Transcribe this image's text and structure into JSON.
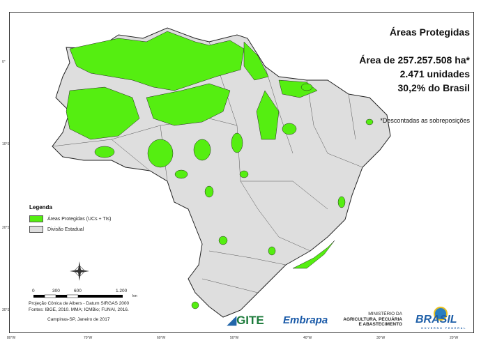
{
  "header": {
    "title": "Áreas Protegidas",
    "area": "Área de 257.257.508 ha*",
    "units": "2.471 unidades",
    "percent": "30,2% do Brasil",
    "note": "*Descontadas as sobreposições"
  },
  "legend": {
    "title": "Legenda",
    "items": [
      {
        "label": "Áreas Protegidas (UCs + TIs)",
        "color": "#55ee11"
      },
      {
        "label": "Divisão Estadual",
        "color": "#dedede"
      }
    ]
  },
  "scale_bar": {
    "labels": [
      "0",
      "300",
      "600",
      "1.200"
    ],
    "unit": "km"
  },
  "credits": {
    "projection": "Projeção Cônica de Albers - Datum SIRGAS 2000",
    "sources": "Fontes: IBGE, 2010. MMA; ICMBio; FUNAI, 2016.",
    "place_date": "Campinas-SP, Janeiro de 2017"
  },
  "axes": {
    "lat_labels": [
      "0°",
      "10°S",
      "20°S",
      "30°S"
    ],
    "lon_labels": [
      "80°W",
      "70°W",
      "60°W",
      "50°W",
      "40°W",
      "30°W",
      "20°W"
    ]
  },
  "logos": {
    "gite": "GITE",
    "embrapa": "Embrapa",
    "ministry": [
      "MINISTÉRIO DA",
      "AGRICULTURA, PECUÁRIA",
      "E ABASTECIMENTO"
    ],
    "brasil": "BRASIL",
    "brasil_sub": "GOVERNO FEDERAL"
  },
  "colors": {
    "protected": "#55ee11",
    "state": "#dedede",
    "border": "#222222"
  }
}
